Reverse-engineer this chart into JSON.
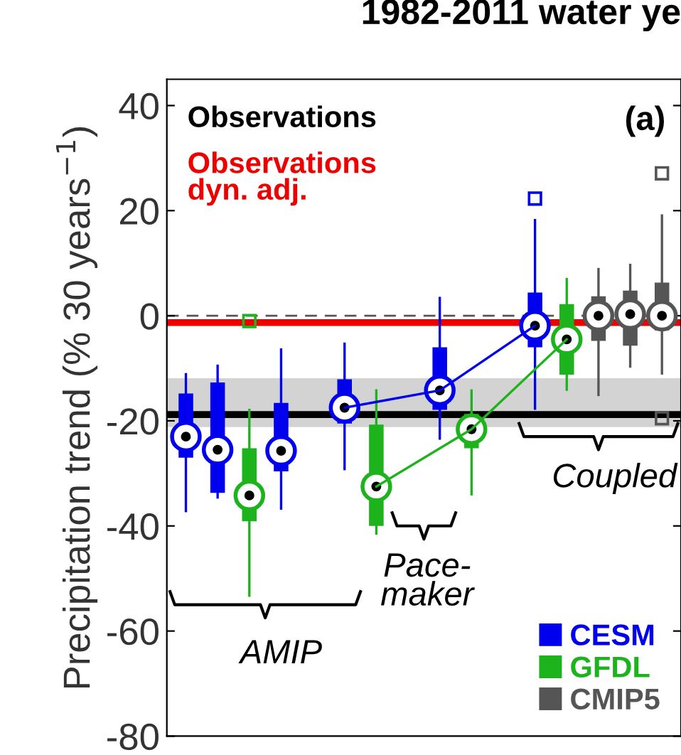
{
  "chart_data": {
    "type": "box",
    "title": "1982-2011 water ye",
    "ylabel": "Precipitation trend (% 30 years$^{−1}$)",
    "categories": [
      null,
      null,
      null,
      null,
      null,
      null,
      null,
      null,
      null,
      null,
      null,
      null,
      null,
      null,
      null,
      null
    ],
    "ylim": [
      -80,
      45
    ],
    "yticks": [
      -80,
      -60,
      -40,
      -20,
      0,
      20,
      40
    ],
    "grid": false,
    "legend": "bottom right",
    "marker": "circle",
    "series": [
      {
        "name": "CESM",
        "color": "#0000ee",
        "boxes": [
          {
            "low": -37.4,
            "q1": -27,
            "median": -23,
            "q3": -14.8,
            "high": -10.9
          },
          {
            "low": -34.8,
            "q1": -33.7,
            "median": -25.5,
            "q3": -12.7,
            "high": -9.3
          },
          null,
          {
            "low": -36.9,
            "q1": -29.6,
            "median": -25.7,
            "q3": -16.6,
            "high": -6.2
          },
          null,
          {
            "low": -29.4,
            "q1": -20.5,
            "median": -17.5,
            "q3": -12.1,
            "high": -5.1
          },
          null,
          null,
          {
            "low": -23.6,
            "q1": -17.9,
            "median": -14.2,
            "q3": -6,
            "high": 3.6
          },
          null,
          null,
          {
            "low": -17.9,
            "q1": -6,
            "median": -1.9,
            "q3": 4.4,
            "high": 18.4,
            "outliers": [
              22.3
            ]
          },
          null,
          null,
          null,
          null
        ]
      },
      {
        "name": "GFDL",
        "color": "#1db31d",
        "boxes": [
          null,
          null,
          {
            "low": -53.5,
            "q1": -39.1,
            "median": -34.2,
            "q3": -25.2,
            "high": -17.7,
            "outliers": [
              -1
            ]
          },
          null,
          null,
          null,
          {
            "low": -41.7,
            "q1": -40,
            "median": -32.5,
            "q3": -20.7,
            "high": -14
          },
          null,
          null,
          {
            "low": -34.2,
            "q1": -25.2,
            "median": -21.6,
            "q3": -18.7,
            "high": -14
          },
          null,
          null,
          {
            "low": -14.3,
            "q1": -11.2,
            "median": -4.5,
            "q3": 2.2,
            "high": 7.2
          },
          null,
          null,
          null
        ]
      },
      {
        "name": "CMIP5",
        "color": "#555555",
        "boxes": [
          null,
          null,
          null,
          null,
          null,
          null,
          null,
          null,
          null,
          null,
          null,
          null,
          null,
          {
            "low": -15.3,
            "q1": -4.8,
            "median": 0,
            "q3": 3.7,
            "high": 9.1
          },
          {
            "low": -9.9,
            "q1": -5.7,
            "median": 0.3,
            "q3": 4.8,
            "high": 9.9
          },
          {
            "low": -11.2,
            "q1": -2.8,
            "median": 0,
            "q3": 6.3,
            "high": 19.3,
            "outliers": [
              27.1,
              -19.5
            ]
          }
        ]
      },
      {
        "type": "line",
        "marker": "none",
        "color": "#0000ee",
        "values": [
          null,
          null,
          null,
          null,
          null,
          -17.5,
          null,
          null,
          -14.2,
          null,
          null,
          -1.9,
          null,
          null,
          null,
          null
        ]
      },
      {
        "type": "line",
        "marker": "none",
        "color": "#1db31d",
        "values": [
          null,
          null,
          null,
          null,
          null,
          null,
          -32.5,
          null,
          null,
          -21.6,
          null,
          null,
          -4.5,
          null,
          null,
          null
        ]
      }
    ],
    "ref_lines": [
      {
        "axis": "y",
        "value": 0,
        "color": "#555555",
        "line_style": "dashed"
      },
      {
        "axis": "y",
        "value": -1.3,
        "label": "Observations\ndyn. adj.",
        "color": "#ee0000",
        "line_style": "solid"
      },
      {
        "axis": "y",
        "value": -18.8,
        "label": "Observations",
        "color": "#000000",
        "line_style": "solid"
      }
    ],
    "bands": [
      {
        "axis": "y",
        "from": -21.2,
        "to": -11.9,
        "color": "#d3d3d3"
      }
    ],
    "annotations": [
      "(a)",
      "AMIP",
      "Pace-\nmaker",
      "Coupled"
    ]
  }
}
